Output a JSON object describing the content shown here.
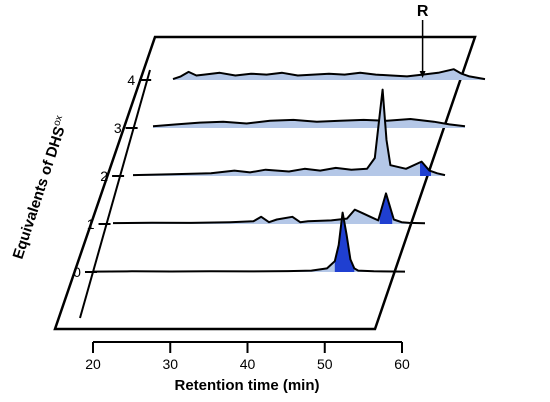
{
  "chart_data": {
    "type": "area",
    "title": "",
    "xlabel": "Retention time (min)",
    "ylabel_main": "Equivalents of DHS",
    "ylabel_sup": "ox",
    "xticks": [
      "20",
      "30",
      "40",
      "50",
      "60"
    ],
    "xlim": [
      20,
      60
    ],
    "marker_label": "R",
    "marker_x": 52,
    "colors": {
      "fill": "#b4c7e7",
      "highlight": "#1f3fd1",
      "line": "#000000"
    },
    "traces": [
      {
        "equivalent": "0",
        "x": [
          20,
          25,
          30,
          35,
          40,
          45,
          48,
          50,
          51,
          51.5,
          52,
          52.5,
          53,
          53.5,
          54,
          56,
          60
        ],
        "y": [
          0.5,
          0.8,
          0.6,
          0.9,
          0.7,
          1,
          1.5,
          4,
          12,
          30,
          66,
          42,
          14,
          4,
          1.5,
          0.8,
          0.5
        ],
        "highlight": [
          51,
          53.5
        ]
      },
      {
        "equivalent": "1",
        "x": [
          20,
          25,
          30,
          35,
          38,
          39,
          40,
          41,
          43,
          44,
          45,
          48,
          50,
          51,
          52,
          53,
          54,
          55,
          56,
          57,
          58,
          60
        ],
        "y": [
          1,
          1.5,
          1.2,
          2,
          3,
          8,
          2,
          5,
          8,
          2,
          3,
          4,
          6,
          16,
          12,
          8,
          4,
          34,
          5,
          2,
          1.2,
          0.8
        ],
        "highlight": [
          54.2,
          55.8
        ]
      },
      {
        "equivalent": "2",
        "x": [
          20,
          25,
          30,
          33,
          35,
          37,
          40,
          42,
          44,
          46,
          48,
          50,
          51,
          51.5,
          52,
          52.5,
          53,
          55,
          57,
          58,
          59,
          60
        ],
        "y": [
          1,
          2,
          3,
          6,
          4,
          7,
          5,
          8,
          6,
          9,
          7,
          8,
          20,
          58,
          96,
          40,
          12,
          8,
          16,
          6,
          3,
          1
        ],
        "highlight": [
          56.8,
          58.2
        ]
      },
      {
        "equivalent": "3",
        "x": [
          20,
          23,
          26,
          29,
          32,
          35,
          38,
          41,
          44,
          47,
          50,
          53,
          56,
          58,
          60
        ],
        "y": [
          2,
          4,
          6,
          7,
          5,
          8,
          9,
          7,
          8,
          9,
          8,
          10,
          7,
          4,
          2
        ],
        "highlight": []
      },
      {
        "equivalent": "4",
        "x": [
          20,
          21,
          22,
          23,
          24,
          26,
          28,
          30,
          32,
          34,
          36,
          38,
          40,
          42,
          44,
          46,
          48,
          50,
          52,
          54,
          56,
          57,
          58,
          60
        ],
        "y": [
          1,
          4,
          9,
          5,
          6,
          8,
          5,
          7,
          6,
          8,
          5,
          6,
          7,
          6,
          8,
          6,
          5,
          4,
          6,
          8,
          12,
          7,
          4,
          1
        ],
        "highlight": []
      }
    ]
  }
}
